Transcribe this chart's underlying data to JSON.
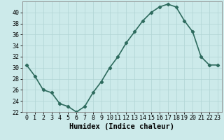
{
  "x": [
    0,
    1,
    2,
    3,
    4,
    5,
    6,
    7,
    8,
    9,
    10,
    11,
    12,
    13,
    14,
    15,
    16,
    17,
    18,
    19,
    20,
    21,
    22,
    23
  ],
  "y": [
    30.5,
    28.5,
    26.0,
    25.5,
    23.5,
    23.0,
    22.0,
    23.0,
    25.5,
    27.5,
    30.0,
    32.0,
    34.5,
    36.5,
    38.5,
    40.0,
    41.0,
    41.5,
    41.0,
    38.5,
    36.5,
    32.0,
    30.5,
    30.5
  ],
  "line_color": "#2e6b5e",
  "marker": "D",
  "marker_size": 2.2,
  "bg_color": "#cceaea",
  "grid_color": "#b0d4d4",
  "xlabel": "Humidex (Indice chaleur)",
  "xlim": [
    -0.5,
    23.5
  ],
  "ylim": [
    22,
    42
  ],
  "yticks": [
    22,
    24,
    26,
    28,
    30,
    32,
    34,
    36,
    38,
    40
  ],
  "xticks": [
    0,
    1,
    2,
    3,
    4,
    5,
    6,
    7,
    8,
    9,
    10,
    11,
    12,
    13,
    14,
    15,
    16,
    17,
    18,
    19,
    20,
    21,
    22,
    23
  ],
  "tick_fontsize": 6,
  "xlabel_fontsize": 7.5,
  "linewidth": 1.2
}
